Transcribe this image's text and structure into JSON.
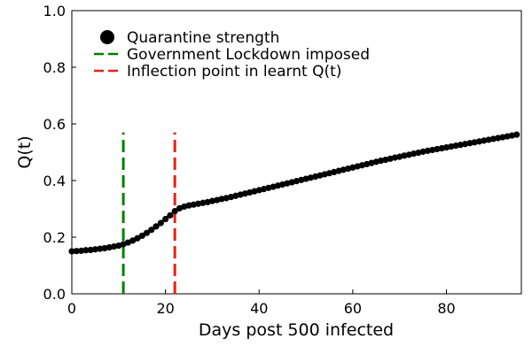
{
  "chart_data": {
    "type": "scatter",
    "xlabel": "Days post 500 infected",
    "ylabel": "Q(t)",
    "xlim": [
      0,
      96
    ],
    "ylim": [
      0,
      1.0
    ],
    "x_ticks": [
      0,
      20,
      40,
      60,
      80
    ],
    "x_tick_labels": [
      "0",
      "20",
      "40",
      "60",
      "80"
    ],
    "y_ticks": [
      0,
      0.2,
      0.4,
      0.6,
      0.8,
      1.0
    ],
    "y_tick_labels": [
      "0.0",
      "0.2",
      "0.4",
      "0.6",
      "0.8",
      "1.0"
    ],
    "grid": false,
    "legend_position": "top-left",
    "series": [
      {
        "name": "Quarantine strength",
        "color": "#000000",
        "marker": "circle",
        "x": [
          0,
          1,
          2,
          3,
          4,
          5,
          6,
          7,
          8,
          9,
          10,
          11,
          12,
          13,
          14,
          15,
          16,
          17,
          18,
          19,
          20,
          21,
          22,
          23,
          24,
          25,
          26,
          27,
          28,
          29,
          30,
          31,
          32,
          33,
          34,
          35,
          36,
          37,
          38,
          39,
          40,
          41,
          42,
          43,
          44,
          45,
          46,
          47,
          48,
          49,
          50,
          51,
          52,
          53,
          54,
          55,
          56,
          57,
          58,
          59,
          60,
          61,
          62,
          63,
          64,
          65,
          66,
          67,
          68,
          69,
          70,
          71,
          72,
          73,
          74,
          75,
          76,
          77,
          78,
          79,
          80,
          81,
          82,
          83,
          84,
          85,
          86,
          87,
          88,
          89,
          90,
          91,
          92,
          93,
          94,
          95
        ],
        "y": [
          0.15,
          0.151,
          0.152,
          0.154,
          0.155,
          0.157,
          0.159,
          0.161,
          0.164,
          0.167,
          0.17,
          0.175,
          0.181,
          0.188,
          0.196,
          0.205,
          0.215,
          0.226,
          0.238,
          0.25,
          0.264,
          0.277,
          0.292,
          0.302,
          0.308,
          0.312,
          0.315,
          0.318,
          0.321,
          0.324,
          0.328,
          0.331,
          0.335,
          0.338,
          0.342,
          0.346,
          0.35,
          0.354,
          0.358,
          0.362,
          0.366,
          0.37,
          0.374,
          0.378,
          0.382,
          0.386,
          0.39,
          0.394,
          0.398,
          0.402,
          0.406,
          0.41,
          0.414,
          0.418,
          0.422,
          0.426,
          0.43,
          0.434,
          0.438,
          0.442,
          0.446,
          0.45,
          0.454,
          0.458,
          0.462,
          0.466,
          0.47,
          0.473,
          0.477,
          0.481,
          0.484,
          0.488,
          0.491,
          0.495,
          0.498,
          0.502,
          0.505,
          0.508,
          0.511,
          0.514,
          0.517,
          0.52,
          0.523,
          0.526,
          0.529,
          0.532,
          0.535,
          0.538,
          0.541,
          0.544,
          0.547,
          0.55,
          0.553,
          0.556,
          0.559,
          0.562
        ]
      }
    ],
    "vlines": [
      {
        "name": "Government Lockdown imposed",
        "x": 11,
        "y_range": [
          0,
          0.57
        ],
        "color": "#008000",
        "style": "dashed"
      },
      {
        "name": "Inflection point in learnt Q(t)",
        "x": 22,
        "y_range": [
          0,
          0.57
        ],
        "color": "#e8201a",
        "style": "dashed"
      }
    ]
  }
}
